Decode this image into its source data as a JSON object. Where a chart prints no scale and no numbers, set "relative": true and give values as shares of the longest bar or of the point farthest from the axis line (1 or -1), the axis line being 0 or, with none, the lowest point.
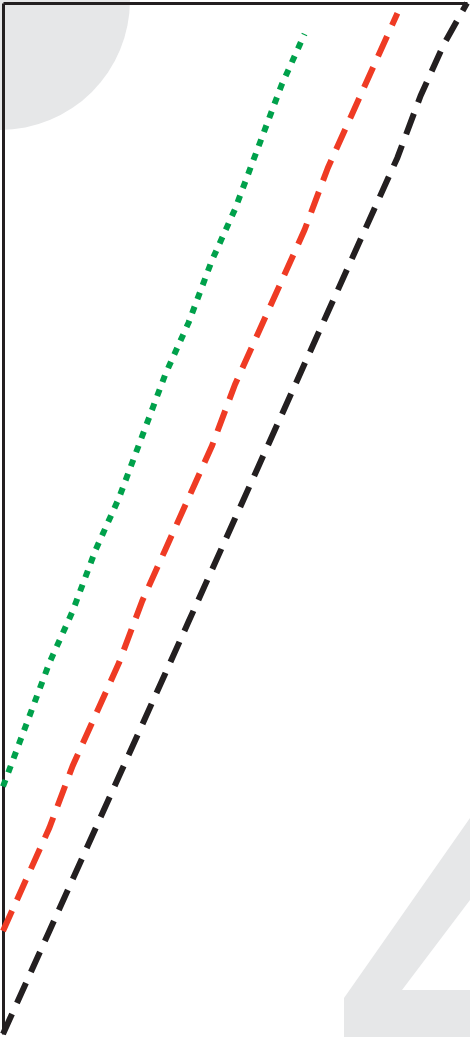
{
  "chart_data": {
    "type": "line",
    "relative": true,
    "categories": [
      null,
      null,
      null,
      null,
      null,
      null,
      null,
      null,
      null,
      null,
      null,
      null,
      null,
      null,
      null,
      null,
      null,
      null,
      null,
      null,
      null
    ],
    "series": [
      {
        "color": "#00a14b",
        "line_style": "dotted",
        "values": [
          0.24,
          0.3,
          0.36,
          0.41,
          0.47,
          0.52,
          0.58,
          0.64,
          0.69,
          0.75,
          0.8,
          0.86,
          0.92,
          0.97,
          null,
          null,
          null,
          null,
          null,
          null,
          null
        ]
      },
      {
        "color": "#ef3b24",
        "line_style": "dashed",
        "values": [
          0.1,
          0.15,
          0.2,
          0.26,
          0.31,
          0.36,
          0.42,
          0.47,
          0.52,
          0.57,
          0.63,
          0.68,
          0.73,
          0.78,
          0.84,
          0.89,
          0.94,
          0.99,
          null,
          null,
          null
        ]
      },
      {
        "color": "#231f20",
        "line_style": "dashed",
        "values": [
          0,
          0.05,
          0.1,
          0.15,
          0.2,
          0.25,
          0.3,
          0.35,
          0.4,
          0.45,
          0.5,
          0.55,
          0.6,
          0.65,
          0.7,
          0.75,
          0.8,
          0.85,
          0.91,
          0.96,
          1.0
        ]
      }
    ],
    "grid": false,
    "marker": "none"
  }
}
